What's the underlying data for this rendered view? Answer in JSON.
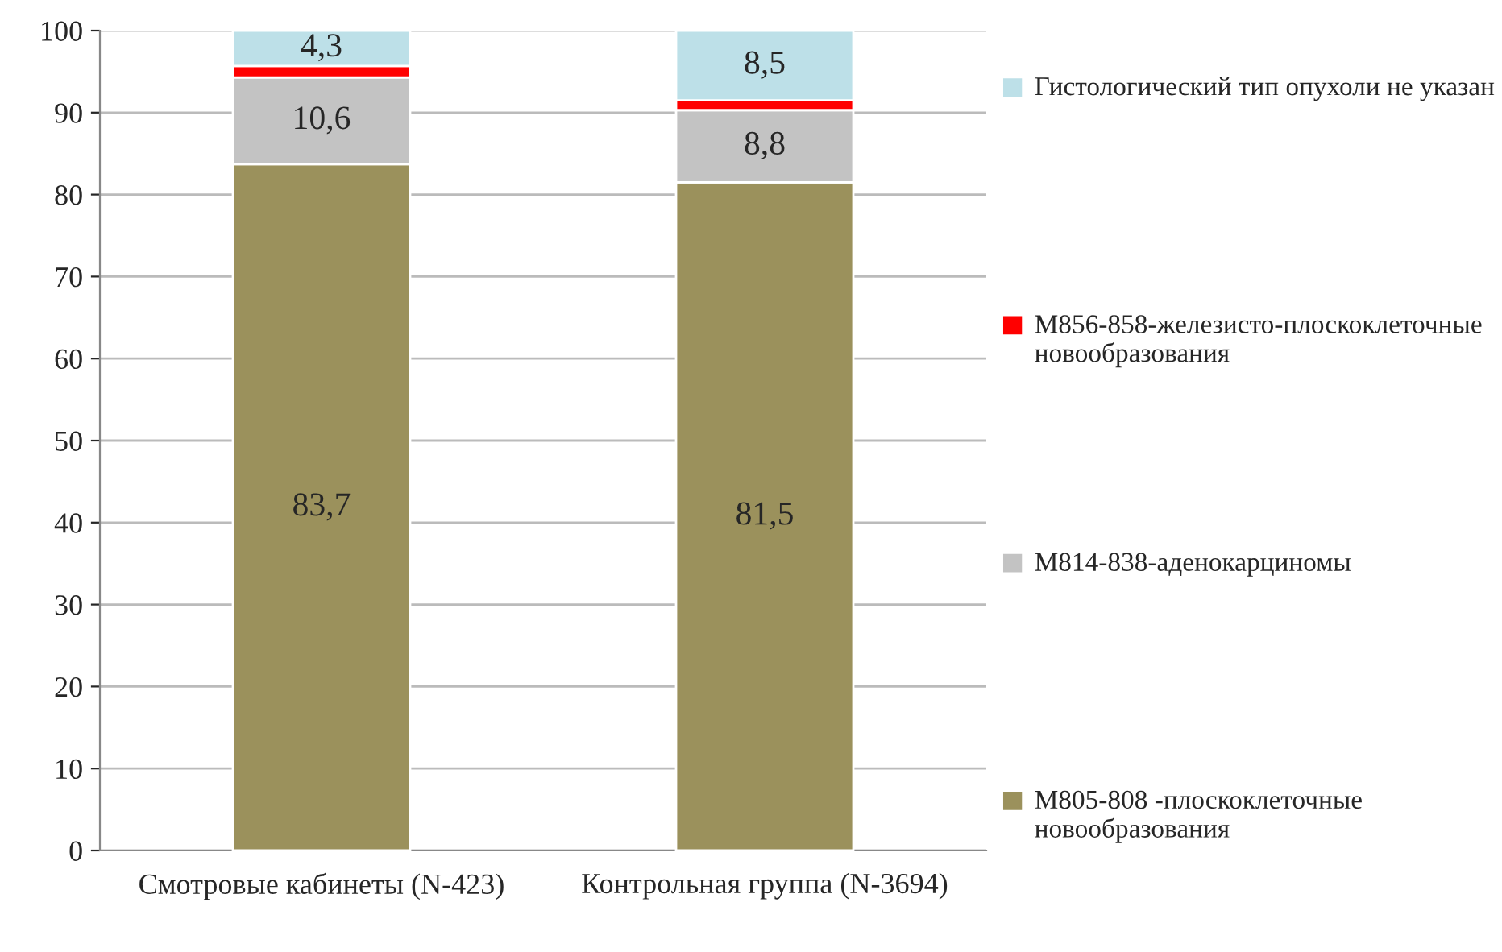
{
  "chart_data": {
    "type": "bar",
    "stacked": true,
    "categories": [
      "Смотровые кабинеты (N-423)",
      "Контрольная группа (N-3694)"
    ],
    "series": [
      {
        "name": "M805-808 -плоскоклеточные новообразования",
        "color": "#9b915c",
        "values": [
          83.7,
          81.5
        ],
        "value_labels": [
          "83,7",
          "81,5"
        ]
      },
      {
        "name": "M814-838-аденокарциномы",
        "color": "#c3c3c3",
        "values": [
          10.6,
          8.8
        ],
        "value_labels": [
          "10,6",
          "8,8"
        ]
      },
      {
        "name": "M856-858-железисто-плоскоклеточные новообразования",
        "color": "#ff0000",
        "values": [
          1.4,
          1.2
        ],
        "value_labels": [
          null,
          null
        ]
      },
      {
        "name": "Гистологический тип опухоли не указан",
        "color": "#bde0e8",
        "values": [
          4.3,
          8.5
        ],
        "value_labels": [
          "4,3",
          "8,5"
        ]
      }
    ],
    "ylim": [
      0,
      100
    ],
    "yticks": [
      0,
      10,
      20,
      30,
      40,
      50,
      60,
      70,
      80,
      90,
      100
    ],
    "grid": "y",
    "legend": "right"
  }
}
